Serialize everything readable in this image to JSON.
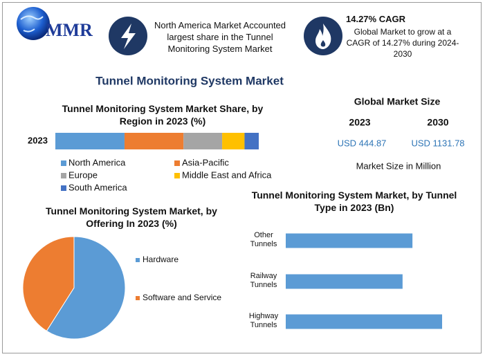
{
  "header": {
    "logo": "MMR",
    "fact1": "North America Market Accounted largest share in the Tunnel Monitoring System Market",
    "fact2_title": "14.27% CAGR",
    "fact2_text": "Global Market to grow at a CAGR of 14.27% during 2024-2030"
  },
  "main_title": "Tunnel Monitoring System Market",
  "market_size": {
    "title": "Global Market Size",
    "years": [
      "2023",
      "2030"
    ],
    "values": [
      "USD 444.87",
      "USD 1131.78"
    ],
    "note": "Market Size in Million"
  },
  "chart_data": [
    {
      "type": "bar",
      "orientation": "horizontal",
      "stacked": true,
      "title": "Tunnel Monitoring System Market Share, by Region in 2023 (%)",
      "categories": [
        "2023"
      ],
      "series": [
        {
          "name": "North America",
          "color": "#5b9bd5",
          "values": [
            34
          ]
        },
        {
          "name": "Asia-Pacific",
          "color": "#ed7d31",
          "values": [
            29
          ]
        },
        {
          "name": "Europe",
          "color": "#a5a5a5",
          "values": [
            19
          ]
        },
        {
          "name": "Middle East and Africa",
          "color": "#ffc000",
          "values": [
            11
          ]
        },
        {
          "name": "South America",
          "color": "#4472c4",
          "values": [
            7
          ]
        }
      ]
    },
    {
      "type": "pie",
      "title": "Tunnel Monitoring System Market, by Offering In 2023 (%)",
      "categories": [
        "Hardware",
        "Software and Service"
      ],
      "values": [
        59,
        41
      ],
      "colors": [
        "#5b9bd5",
        "#ed7d31"
      ]
    },
    {
      "type": "bar",
      "orientation": "horizontal",
      "title": "Tunnel Monitoring System Market, by Tunnel Type in 2023 (Bn)",
      "categories": [
        "Other Tunnels",
        "Railway Tunnels",
        "Highway Tunnels"
      ],
      "values": [
        141,
        130,
        174
      ],
      "color": "#5b9bd5"
    }
  ]
}
